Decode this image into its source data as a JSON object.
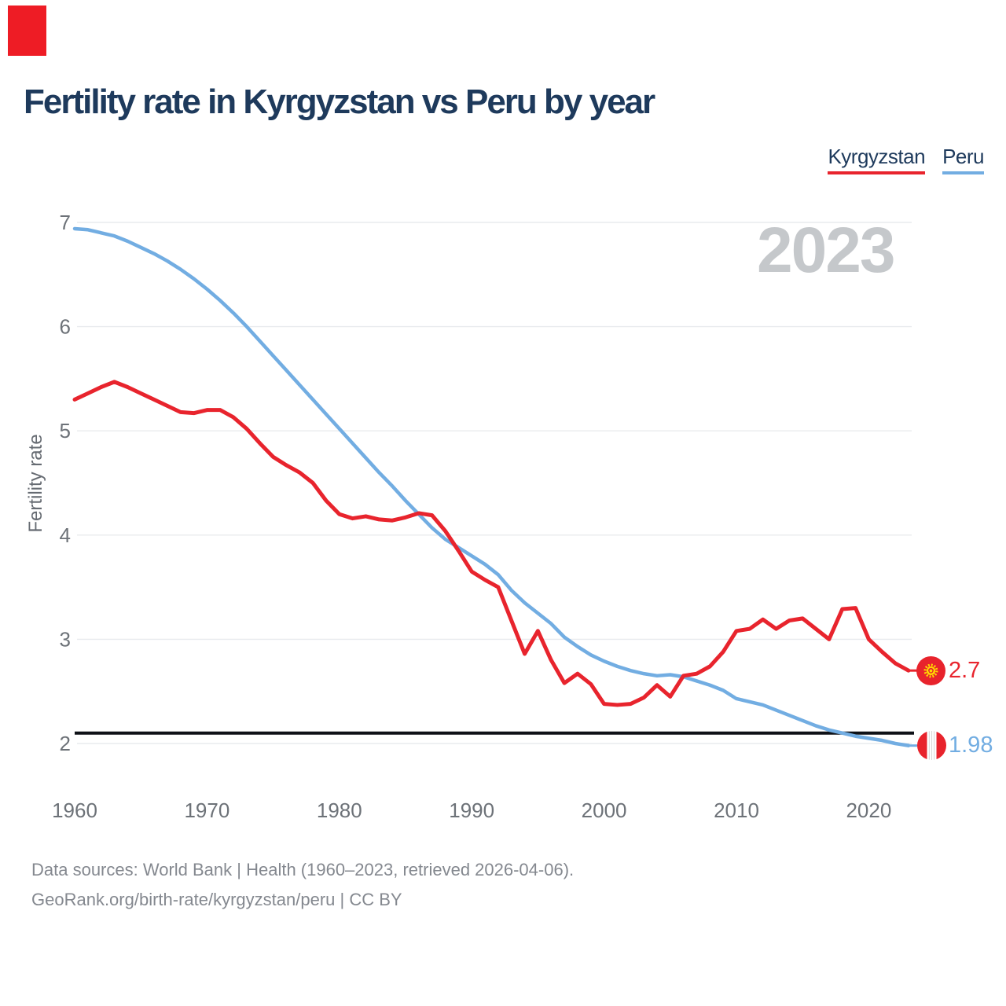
{
  "page": {
    "title": "Fertility rate in Kyrgyzstan vs Peru by year",
    "watermark": "2023",
    "footer_line1": "Data sources: World Bank | Health (1960–2023, retrieved 2026-04-06).",
    "footer_line2": "GeoRank.org/birth-rate/kyrgyzstan/peru | CC BY"
  },
  "legend": {
    "items": [
      {
        "label": "Kyrgyzstan",
        "color": "#e8242d"
      },
      {
        "label": "Peru",
        "color": "#72ade2"
      }
    ]
  },
  "end_labels": {
    "kyrgyzstan_value": "2.7",
    "peru_value": "1.98"
  },
  "chart_data": {
    "type": "line",
    "title": "Fertility rate in Kyrgyzstan vs Peru by year",
    "xlabel": "",
    "ylabel": "Fertility rate",
    "xlim": [
      1960,
      2023
    ],
    "ylim": [
      1.9,
      7.05
    ],
    "grid": "horizontal",
    "legend_position": "top-right",
    "yticks": [
      2,
      3,
      4,
      5,
      6,
      7
    ],
    "xticks": [
      1960,
      1970,
      1980,
      1990,
      2000,
      2010,
      2020
    ],
    "replacement_level": 2.1,
    "x": [
      1960,
      1961,
      1962,
      1963,
      1964,
      1965,
      1966,
      1967,
      1968,
      1969,
      1970,
      1971,
      1972,
      1973,
      1974,
      1975,
      1976,
      1977,
      1978,
      1979,
      1980,
      1981,
      1982,
      1983,
      1984,
      1985,
      1986,
      1987,
      1988,
      1989,
      1990,
      1991,
      1992,
      1993,
      1994,
      1995,
      1996,
      1997,
      1998,
      1999,
      2000,
      2001,
      2002,
      2003,
      2004,
      2005,
      2006,
      2007,
      2008,
      2009,
      2010,
      2011,
      2012,
      2013,
      2014,
      2015,
      2016,
      2017,
      2018,
      2019,
      2020,
      2021,
      2022,
      2023
    ],
    "series": [
      {
        "name": "Kyrgyzstan",
        "color": "#e8242d",
        "width": 5,
        "values": [
          5.3,
          5.36,
          5.42,
          5.47,
          5.42,
          5.36,
          5.3,
          5.24,
          5.18,
          5.17,
          5.2,
          5.2,
          5.13,
          5.02,
          4.88,
          4.75,
          4.67,
          4.6,
          4.5,
          4.33,
          4.2,
          4.16,
          4.18,
          4.15,
          4.14,
          4.17,
          4.21,
          4.19,
          4.04,
          3.85,
          3.65,
          3.57,
          3.5,
          3.18,
          2.86,
          3.08,
          2.8,
          2.58,
          2.67,
          2.57,
          2.38,
          2.37,
          2.38,
          2.44,
          2.56,
          2.45,
          2.65,
          2.67,
          2.74,
          2.88,
          3.08,
          3.1,
          3.19,
          3.1,
          3.18,
          3.2,
          3.1,
          3.0,
          3.29,
          3.3,
          3.0,
          2.88,
          2.77,
          2.7
        ]
      },
      {
        "name": "Peru",
        "color": "#72ade2",
        "width": 4.5,
        "values": [
          6.94,
          6.93,
          6.9,
          6.87,
          6.82,
          6.76,
          6.7,
          6.63,
          6.55,
          6.46,
          6.36,
          6.25,
          6.13,
          6.0,
          5.86,
          5.72,
          5.58,
          5.44,
          5.3,
          5.16,
          5.02,
          4.88,
          4.74,
          4.6,
          4.47,
          4.33,
          4.2,
          4.07,
          3.96,
          3.88,
          3.8,
          3.72,
          3.62,
          3.47,
          3.35,
          3.25,
          3.15,
          3.02,
          2.93,
          2.85,
          2.79,
          2.74,
          2.7,
          2.67,
          2.65,
          2.66,
          2.64,
          2.6,
          2.56,
          2.51,
          2.43,
          2.4,
          2.37,
          2.32,
          2.27,
          2.22,
          2.17,
          2.13,
          2.1,
          2.07,
          2.05,
          2.03,
          2.0,
          1.98
        ]
      }
    ]
  }
}
